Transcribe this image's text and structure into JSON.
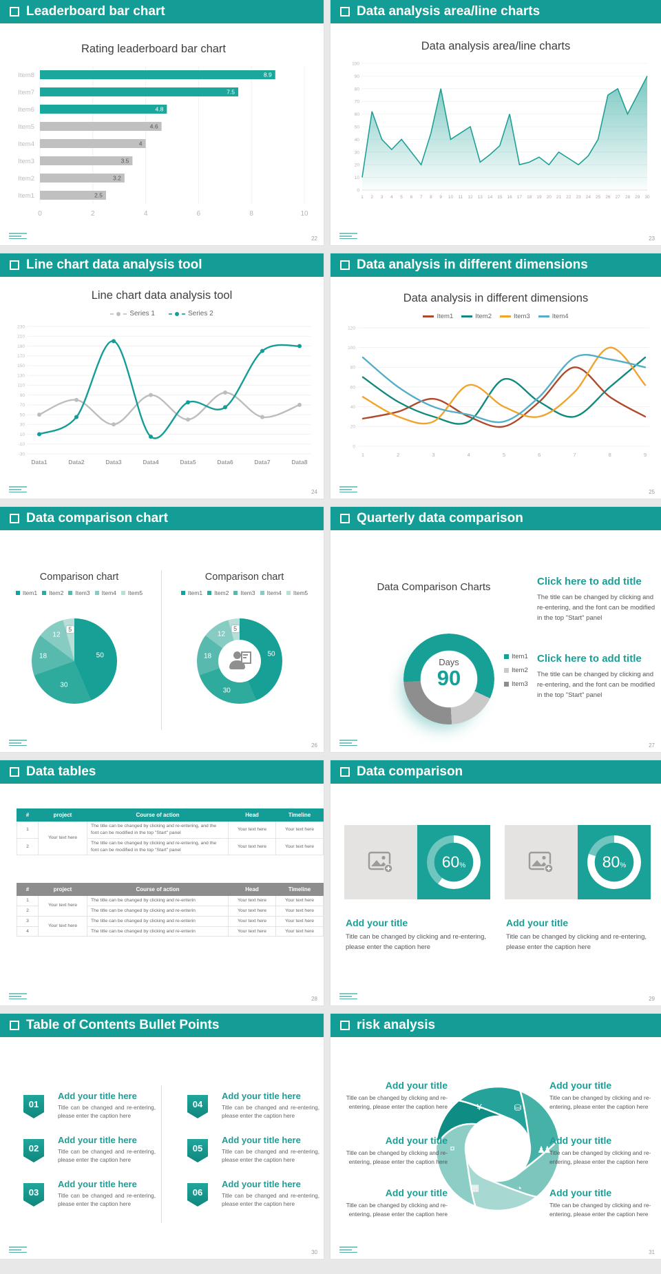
{
  "theme": {
    "teal": "#149d97",
    "teal_bright": "#1ba79b",
    "gray_bar": "#c0c0c0",
    "title_text": "#3f3f3f",
    "body_text": "#595959",
    "axis_text": "#b0b0b0"
  },
  "slides": [
    {
      "header": "Leaderboard bar chart",
      "page": "22",
      "title": "Rating leaderboard bar chart"
    },
    {
      "header": "Data analysis area/line charts",
      "page": "23",
      "title": "Data analysis area/line charts"
    },
    {
      "header": "Line chart data analysis tool",
      "page": "24",
      "title": "Line chart data analysis tool"
    },
    {
      "header": "Data analysis in different dimensions",
      "page": "25",
      "title": "Data analysis in different dimensions"
    },
    {
      "header": "Data comparison chart",
      "page": "26",
      "panel_titles": [
        "Comparison chart",
        "Comparison chart"
      ],
      "legend": [
        "Item1",
        "Item2",
        "Item3",
        "Item4",
        "Item5"
      ]
    },
    {
      "header": "Quarterly data comparison",
      "page": "27",
      "label": "Data Comparison Charts",
      "center_label": "Days",
      "center_value": "90",
      "legend": [
        "Item1",
        "Item2",
        "Item3"
      ],
      "blocks": [
        {
          "title": "Click here to add title",
          "body": "The title can be changed by clicking and re-entering, and the font can be modified in the top \"Start\" panel"
        },
        {
          "title": "Click here to add title",
          "body": "The title can be changed by clicking and re-entering, and the font can be modified in the top \"Start\" panel"
        }
      ]
    },
    {
      "header": "Data tables",
      "page": "28",
      "table1": {
        "columns": [
          "#",
          "project",
          "Course of action",
          "Head",
          "Timeline"
        ],
        "rows": [
          [
            "1",
            "Your text here",
            "The title can be changed by clicking and re-entering, and the font can be modified in the top \"Start\" panel",
            "Your text here",
            "Your text here"
          ],
          [
            "2",
            null,
            "The title can be changed by clicking and re-entering, and the font can be modified in the top \"Start\" panel",
            "Your text here",
            "Your text here"
          ]
        ]
      },
      "table2": {
        "columns": [
          "#",
          "project",
          "Course of action",
          "Head",
          "Timeline"
        ],
        "rows": [
          [
            "1",
            "Your text here",
            "The title can be changed by clicking and re-enterin",
            "Your text here",
            "Your text here"
          ],
          [
            "2",
            null,
            "The title can be changed by clicking and re-enterin",
            "Your text here",
            "Your text here"
          ],
          [
            "3",
            "Your text here",
            "The title can be changed by clicking and re-enterin",
            "Your text here",
            "Your text here"
          ],
          [
            "4",
            null,
            "The title can be changed by clicking and re-enterin",
            "Your text here",
            "Your text here"
          ]
        ]
      }
    },
    {
      "header": "Data comparison",
      "page": "29",
      "cards": [
        {
          "percent": 60,
          "percent_label": "60",
          "title": "Add your title",
          "caption": "Title can be changed by clicking and re-entering, please enter the caption here"
        },
        {
          "percent": 80,
          "percent_label": "80",
          "title": "Add your title",
          "caption": "Title can be changed by clicking and re-entering, please enter the caption here"
        }
      ]
    },
    {
      "header": "Table of Contents Bullet Points",
      "page": "30",
      "items": [
        {
          "num": "01",
          "title": "Add your title here",
          "caption": "Title can be changed and re-entering, please enter the caption here"
        },
        {
          "num": "02",
          "title": "Add your title here",
          "caption": "Title can be changed and re-entering, please enter the caption here"
        },
        {
          "num": "03",
          "title": "Add your title here",
          "caption": "Title can be changed and re-entering, please enter the caption here"
        },
        {
          "num": "04",
          "title": "Add your title here",
          "caption": "Title can be changed and re-entering, please enter the caption here"
        },
        {
          "num": "05",
          "title": "Add your title here",
          "caption": "Title can be changed and re-entering, please enter the caption here"
        },
        {
          "num": "06",
          "title": "Add your title here",
          "caption": "Title can be changed and re-entering, please enter the caption here"
        }
      ]
    },
    {
      "header": "risk analysis",
      "page": "31",
      "icons": [
        "moneybag-icon",
        "coins-icon",
        "people-icon",
        "pie-chart-icon",
        "building-icon",
        "currency-icon"
      ],
      "blocks": [
        {
          "title": "Add your title",
          "caption": "Title can be changed by clicking and re-entering, please enter the caption here"
        },
        {
          "title": "Add your title",
          "caption": "Title can be changed by clicking and re-entering, please enter the caption here"
        },
        {
          "title": "Add your title",
          "caption": "Title can be changed by clicking and re-entering, please enter the caption here"
        },
        {
          "title": "Add your title",
          "caption": "Title can be changed by clicking and re-entering, please enter the caption here"
        },
        {
          "title": "Add your title",
          "caption": "Title can be changed by clicking and re-entering, please enter the caption here"
        },
        {
          "title": "Add your title",
          "caption": "Title can be changed by clicking and re-entering, please enter the caption here"
        }
      ]
    }
  ],
  "chart_data": [
    {
      "slide": 1,
      "type": "bar",
      "orientation": "horizontal",
      "title": "Rating leaderboard bar chart",
      "categories": [
        "Item1",
        "Item2",
        "Item3",
        "Item4",
        "Item5",
        "Item6",
        "Item7",
        "Item8"
      ],
      "values": [
        2.5,
        3.2,
        3.5,
        4,
        4.6,
        4.8,
        7.5,
        8.9
      ],
      "highlight": [
        "Item6",
        "Item7",
        "Item8"
      ],
      "bar_color": "#c0c0c0",
      "highlight_color": "#1ba79b",
      "xlim": [
        0,
        10
      ],
      "xticks": [
        0,
        2,
        4,
        6,
        8,
        10
      ],
      "grid": true
    },
    {
      "slide": 2,
      "type": "area",
      "title": "Data analysis area/line charts",
      "x": [
        1,
        2,
        3,
        4,
        5,
        6,
        7,
        8,
        9,
        10,
        11,
        12,
        13,
        14,
        15,
        16,
        17,
        18,
        19,
        20,
        21,
        22,
        23,
        24,
        25,
        26,
        27,
        28,
        29,
        30
      ],
      "values": [
        10,
        62,
        40,
        32,
        40,
        30,
        20,
        45,
        80,
        40,
        45,
        50,
        22,
        28,
        35,
        60,
        20,
        22,
        26,
        20,
        30,
        25,
        20,
        27,
        40,
        75,
        80,
        60,
        75,
        90
      ],
      "color": "#1f9f95",
      "ylim": [
        0,
        100
      ],
      "ytick_step": 10,
      "grid": true
    },
    {
      "slide": 3,
      "type": "line",
      "title": "Line chart data analysis tool",
      "smooth": true,
      "markers": true,
      "categories": [
        "Data1",
        "Data2",
        "Data3",
        "Data4",
        "Data5",
        "Data6",
        "Data7",
        "Data8"
      ],
      "series": [
        {
          "name": "Series 1",
          "color": "#bdbdbd",
          "values": [
            50,
            80,
            30,
            90,
            40,
            95,
            45,
            70
          ]
        },
        {
          "name": "Series 2",
          "color": "#149d97",
          "values": [
            10,
            45,
            200,
            5,
            75,
            65,
            180,
            190
          ]
        }
      ],
      "ylim": [
        -30,
        230
      ],
      "ytick_step": 20,
      "grid": true,
      "legend_position": "top"
    },
    {
      "slide": 4,
      "type": "line",
      "title": "Data analysis in different dimensions",
      "smooth": true,
      "markers": false,
      "x": [
        1,
        2,
        3,
        4,
        5,
        6,
        7,
        8,
        9
      ],
      "series": [
        {
          "name": "Item1",
          "color": "#b0492c",
          "values": [
            28,
            35,
            48,
            30,
            20,
            45,
            80,
            50,
            30
          ]
        },
        {
          "name": "Item2",
          "color": "#12897f",
          "values": [
            70,
            45,
            30,
            25,
            68,
            45,
            30,
            60,
            90
          ]
        },
        {
          "name": "Item3",
          "color": "#f0a42e",
          "values": [
            50,
            30,
            25,
            62,
            40,
            30,
            55,
            100,
            62
          ]
        },
        {
          "name": "Item4",
          "color": "#53aec6",
          "values": [
            90,
            60,
            40,
            32,
            25,
            50,
            90,
            88,
            80
          ]
        }
      ],
      "ylim": [
        0,
        120
      ],
      "ytick_step": 20,
      "grid": true,
      "legend_position": "top"
    },
    {
      "slide": 5,
      "type": "pie",
      "title": "Comparison chart",
      "labels": [
        "Item1",
        "Item2",
        "Item3",
        "Item4",
        "Item5"
      ],
      "values": [
        50,
        30,
        18,
        12,
        5
      ],
      "colors": [
        "#17a095",
        "#2fab9e",
        "#58baae",
        "#87ccc3",
        "#b9ded8"
      ]
    },
    {
      "slide": 5,
      "type": "donut",
      "title": "Comparison chart",
      "labels": [
        "Item1",
        "Item2",
        "Item3",
        "Item4",
        "Item5"
      ],
      "values": [
        50,
        30,
        18,
        12,
        5
      ],
      "colors": [
        "#17a095",
        "#2fab9e",
        "#58baae",
        "#87ccc3",
        "#b9ded8"
      ]
    },
    {
      "slide": 6,
      "type": "donut",
      "title": "Data Comparison Charts",
      "center": [
        "Days",
        "90"
      ],
      "labels": [
        "Item1",
        "Item2",
        "Item3"
      ],
      "legend_colors": [
        "#17a095",
        "#c9c9c9",
        "#8e8e8e"
      ],
      "segments": {
        "values": [
          32,
          17,
          25,
          26
        ],
        "colors": [
          "#17a095",
          "#c9c9c9",
          "#8e8e8e",
          "#17a095"
        ]
      }
    },
    {
      "slide": 8,
      "type": "gauge",
      "values": [
        60,
        80
      ],
      "color": "#ffffff",
      "track": "rgba(255,255,255,0.38)"
    }
  ]
}
